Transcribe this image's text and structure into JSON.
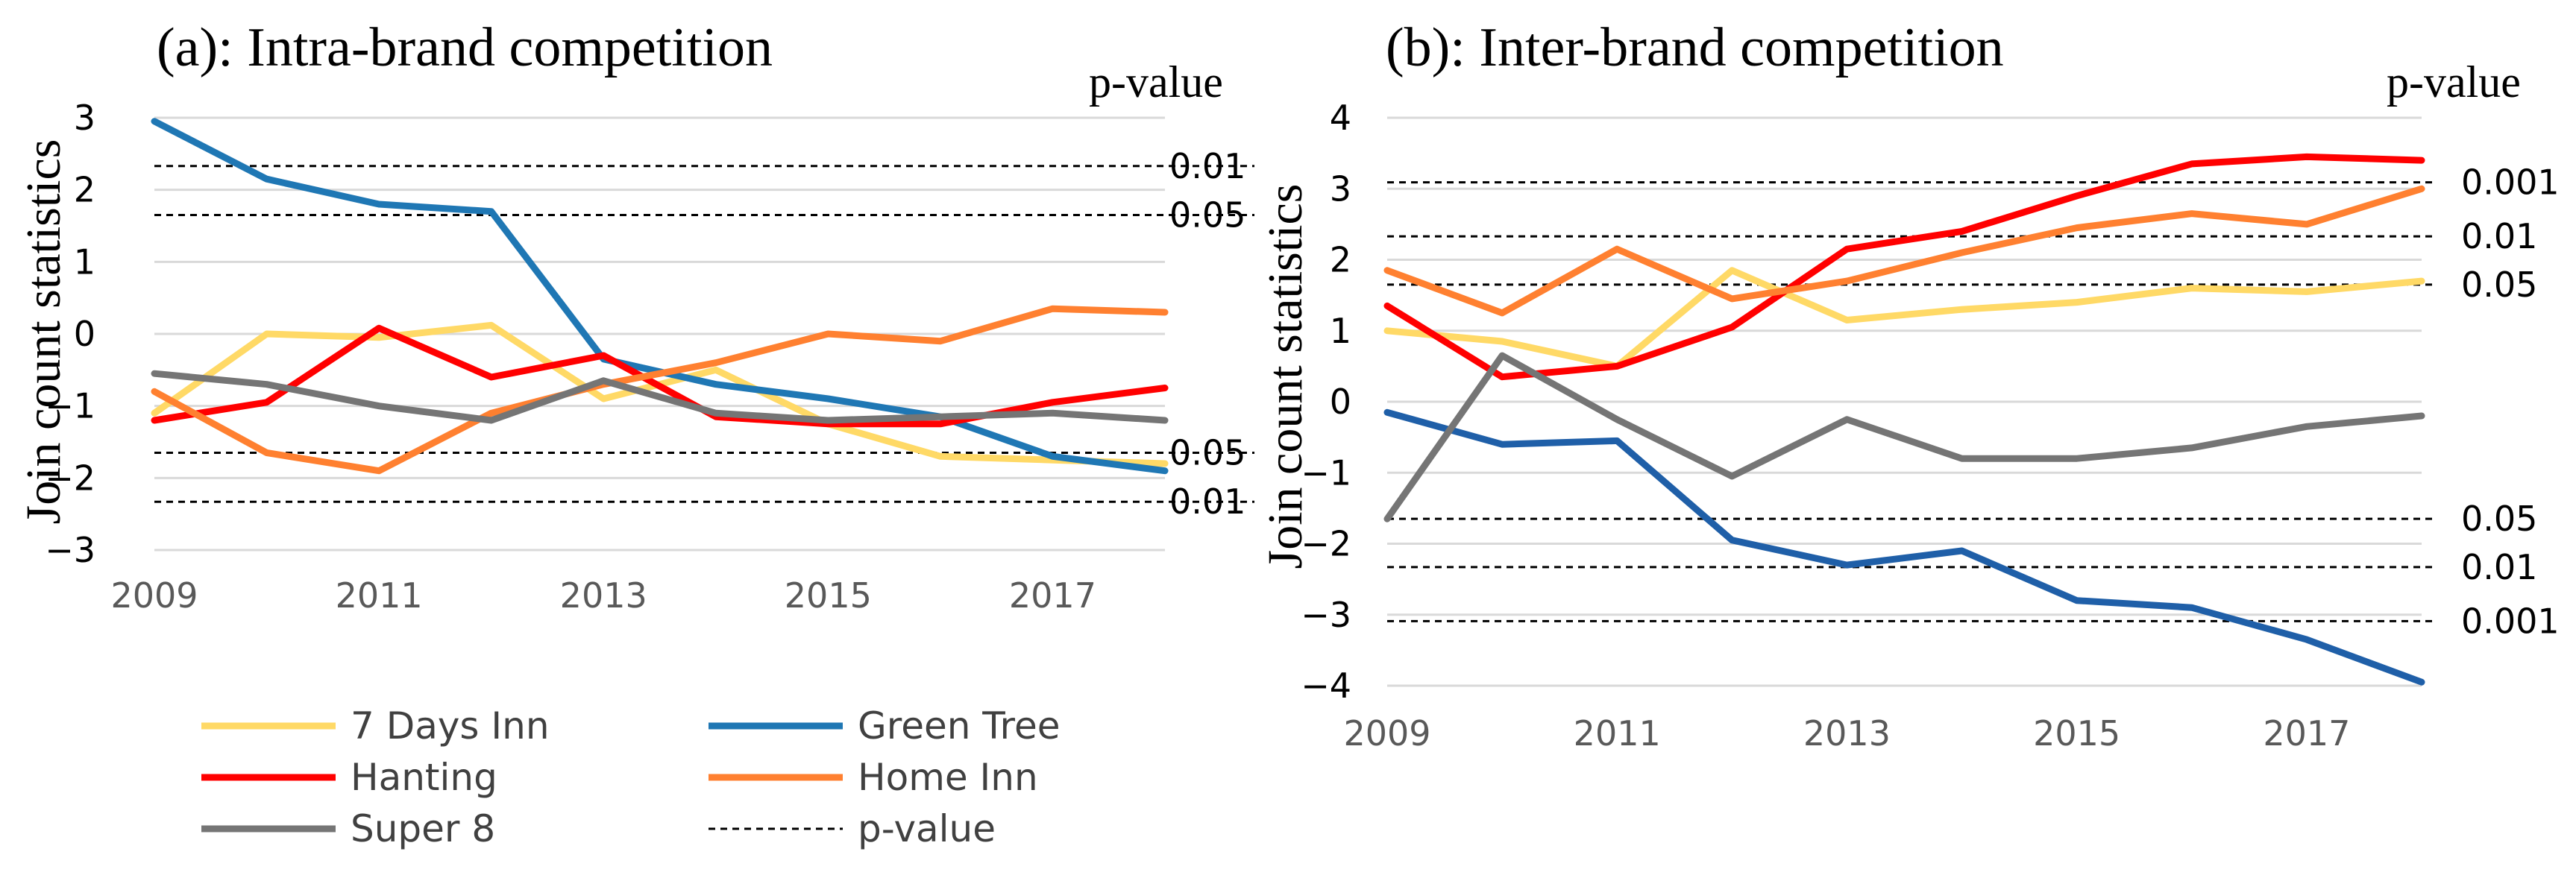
{
  "chart_data": [
    {
      "type": "line",
      "title": "(a): Intra-brand competition",
      "ylabel": "Join count statistics",
      "pvalue_header": "p-value",
      "x": [
        2009,
        2010,
        2011,
        2012,
        2013,
        2014,
        2015,
        2016,
        2017,
        2018
      ],
      "xticks": [
        "2009",
        "2011",
        "2013",
        "2015",
        "2017"
      ],
      "xtick_values": [
        2009,
        2011,
        2013,
        2015,
        2017
      ],
      "ylim": [
        -3,
        3
      ],
      "yticks": [
        -3,
        -2,
        -1,
        0,
        1,
        2,
        3
      ],
      "ytick_labels": [
        "−3",
        "−2",
        "−1",
        "0",
        "1",
        "2",
        "3"
      ],
      "grid": true,
      "series": [
        {
          "name": "7 Days Inn",
          "color": "#FFD966",
          "values": [
            -1.1,
            0.0,
            -0.05,
            0.12,
            -0.9,
            -0.5,
            -1.25,
            -1.7,
            -1.75,
            -1.8
          ]
        },
        {
          "name": "Green Tree",
          "color": "#1F77B4",
          "values": [
            2.95,
            2.15,
            1.8,
            1.7,
            -0.35,
            -0.7,
            -0.9,
            -1.15,
            -1.7,
            -1.9
          ]
        },
        {
          "name": "Hanting",
          "color": "#FF0000",
          "values": [
            -1.2,
            -0.95,
            0.08,
            -0.6,
            -0.3,
            -1.15,
            -1.25,
            -1.25,
            -0.95,
            -0.75
          ]
        },
        {
          "name": "Home Inn",
          "color": "#FF8030",
          "values": [
            -0.8,
            -1.65,
            -1.9,
            -1.1,
            -0.7,
            -0.4,
            0.0,
            -0.1,
            0.35,
            0.3
          ]
        },
        {
          "name": "Super 8",
          "color": "#757575",
          "values": [
            -0.55,
            -0.7,
            -1.0,
            -1.2,
            -0.65,
            -1.1,
            -1.2,
            -1.15,
            -1.1,
            -1.2
          ]
        }
      ],
      "pvalue_lines": [
        {
          "value": 2.33,
          "label": "0.01"
        },
        {
          "value": 1.65,
          "label": "0.05"
        },
        {
          "value": -1.65,
          "label": "0.05"
        },
        {
          "value": -2.33,
          "label": "0.01"
        }
      ]
    },
    {
      "type": "line",
      "title": "(b): Inter-brand competition",
      "ylabel": "Join count statistics",
      "pvalue_header": "p-value",
      "x": [
        2009,
        2010,
        2011,
        2012,
        2013,
        2014,
        2015,
        2016,
        2017,
        2018
      ],
      "xticks": [
        "2009",
        "2011",
        "2013",
        "2015",
        "2017"
      ],
      "xtick_values": [
        2009,
        2011,
        2013,
        2015,
        2017
      ],
      "ylim": [
        -4,
        4
      ],
      "yticks": [
        -4,
        -3,
        -2,
        -1,
        0,
        1,
        2,
        3,
        4
      ],
      "ytick_labels": [
        "−4",
        "−3",
        "−2",
        "−1",
        "0",
        "1",
        "2",
        "3",
        "4"
      ],
      "grid": true,
      "series": [
        {
          "name": "7 Days Inn",
          "color": "#FFD966",
          "values": [
            1.0,
            0.85,
            0.5,
            1.85,
            1.15,
            1.3,
            1.4,
            1.6,
            1.55,
            1.7
          ]
        },
        {
          "name": "Green Tree",
          "color": "#1F5FA8",
          "values": [
            -0.15,
            -0.6,
            -0.55,
            -1.95,
            -2.3,
            -2.1,
            -2.8,
            -2.9,
            -3.35,
            -3.95
          ]
        },
        {
          "name": "Hanting",
          "color": "#FF0000",
          "values": [
            1.35,
            0.35,
            0.5,
            1.05,
            2.15,
            2.4,
            2.9,
            3.35,
            3.45,
            3.4
          ]
        },
        {
          "name": "Home Inn",
          "color": "#FF8030",
          "values": [
            1.85,
            1.25,
            2.15,
            1.45,
            1.7,
            2.1,
            2.45,
            2.65,
            2.5,
            3.0
          ]
        },
        {
          "name": "Super 8",
          "color": "#757575",
          "values": [
            -1.65,
            0.65,
            -0.25,
            -1.05,
            -0.25,
            -0.8,
            -0.8,
            -0.65,
            -0.35,
            -0.2
          ]
        }
      ],
      "pvalue_lines": [
        {
          "value": 3.09,
          "label": "0.001"
        },
        {
          "value": 2.33,
          "label": "0.01"
        },
        {
          "value": 1.65,
          "label": "0.05"
        },
        {
          "value": -1.65,
          "label": "0.05"
        },
        {
          "value": -2.33,
          "label": "0.01"
        },
        {
          "value": -3.09,
          "label": "0.001"
        }
      ]
    }
  ],
  "legend": {
    "items": [
      {
        "label": "7 Days Inn",
        "color": "#FFD966",
        "style": "solid"
      },
      {
        "label": "Green Tree",
        "color": "#1F77B4",
        "style": "solid"
      },
      {
        "label": "Hanting",
        "color": "#FF0000",
        "style": "solid"
      },
      {
        "label": "Home Inn",
        "color": "#FF8030",
        "style": "solid"
      },
      {
        "label": "Super 8",
        "color": "#757575",
        "style": "solid"
      },
      {
        "label": "p-value",
        "color": "#000000",
        "style": "dashed"
      }
    ]
  }
}
